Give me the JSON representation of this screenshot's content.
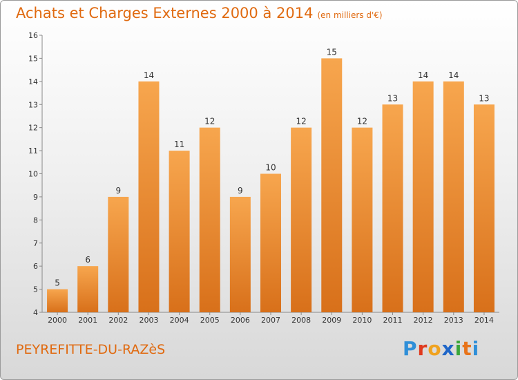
{
  "header": {
    "title": "Achats et Charges Externes 2000 à 2014",
    "subtitle": "(en milliers d'€)"
  },
  "footer": {
    "commune": "PEYREFITTE-DU-RAZèS",
    "brand": "Proxiti"
  },
  "colors": {
    "title": "#e06a10",
    "bar_light": "#f7a64e",
    "bar_dark": "#d8701a",
    "logo_letters": [
      "#2f8fd8",
      "#e03a1e",
      "#f0a21e",
      "#1f66c8",
      "#3aa63a",
      "#e8731a",
      "#2f8fd8"
    ]
  },
  "chart_data": {
    "type": "bar",
    "categories": [
      "2000",
      "2001",
      "2002",
      "2003",
      "2004",
      "2005",
      "2006",
      "2007",
      "2008",
      "2009",
      "2010",
      "2011",
      "2012",
      "2013",
      "2014"
    ],
    "values": [
      5,
      6,
      9,
      14,
      11,
      12,
      9,
      10,
      12,
      15,
      12,
      13,
      14,
      14,
      13
    ],
    "title": "Achats et Charges Externes 2000 à 2014",
    "xlabel": "",
    "ylabel": "",
    "ylim": [
      4,
      16
    ],
    "yticks": [
      4,
      5,
      6,
      7,
      8,
      9,
      10,
      11,
      12,
      13,
      14,
      15,
      16
    ],
    "grid": false,
    "data_labels": true
  }
}
